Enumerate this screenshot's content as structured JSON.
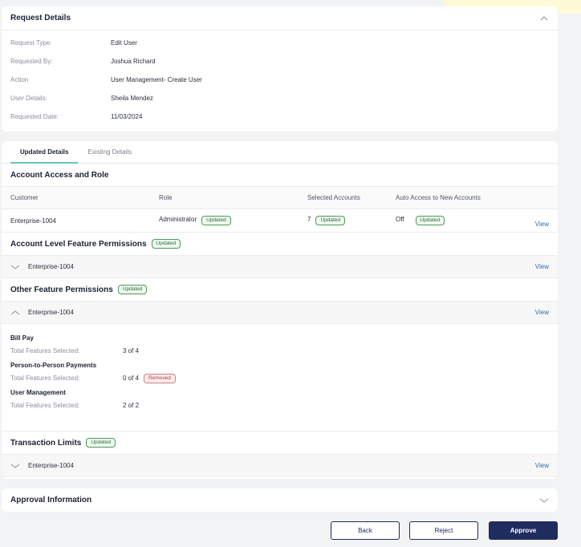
{
  "request_details": {
    "title": "Request Details",
    "rows": [
      {
        "label": "Request Type:",
        "value": "Edit User"
      },
      {
        "label": "Requested By:",
        "value": "Joshua Richard"
      },
      {
        "label": "Action",
        "value": "User Management- Create User"
      },
      {
        "label": "User Details:",
        "value": "Sheila Mendez"
      },
      {
        "label": "Requested Date:",
        "value": "11/03/2024"
      }
    ]
  },
  "tabs": [
    "Updated Details",
    "Existing Details"
  ],
  "account_access": {
    "title": "Account Access and Role",
    "headers": [
      "Customer",
      "Role",
      "Selected Accounts",
      "Auto Access to New Accounts"
    ],
    "row": {
      "customer": "Enterprise-1004",
      "role": "Administrator",
      "selected": "7",
      "auto": "Off",
      "view": "View"
    }
  },
  "badges": {
    "updated": "Updated",
    "removed": "Removed"
  },
  "account_level": {
    "title": "Account Level Feature Permissions",
    "item": "Enterprise-1004",
    "view": "View"
  },
  "other_features": {
    "title": "Other Feature Permissions",
    "item": "Enterprise-1004",
    "view": "View",
    "groups": [
      {
        "name": "Bill Pay",
        "label": "Total Features Selected:",
        "value": "3 of 4"
      },
      {
        "name": "Person-to-Person Payments",
        "label": "Total Features Selected:",
        "value": "0 of 4"
      },
      {
        "name": "User Management",
        "label": "Total Features Selected:",
        "value": "2 of 2"
      }
    ]
  },
  "transaction_limits": {
    "title": "Transaction Limits",
    "item": "Enterprise-1004",
    "view": "View"
  },
  "approval": {
    "title": "Approval Information"
  },
  "actions": {
    "back": "Back",
    "reject": "Reject",
    "approve": "Approve"
  },
  "colors": {
    "accent": "#6fc3b7",
    "primary": "#1f2c60",
    "link": "#2c6bb5",
    "toast": "#fef9d7"
  }
}
